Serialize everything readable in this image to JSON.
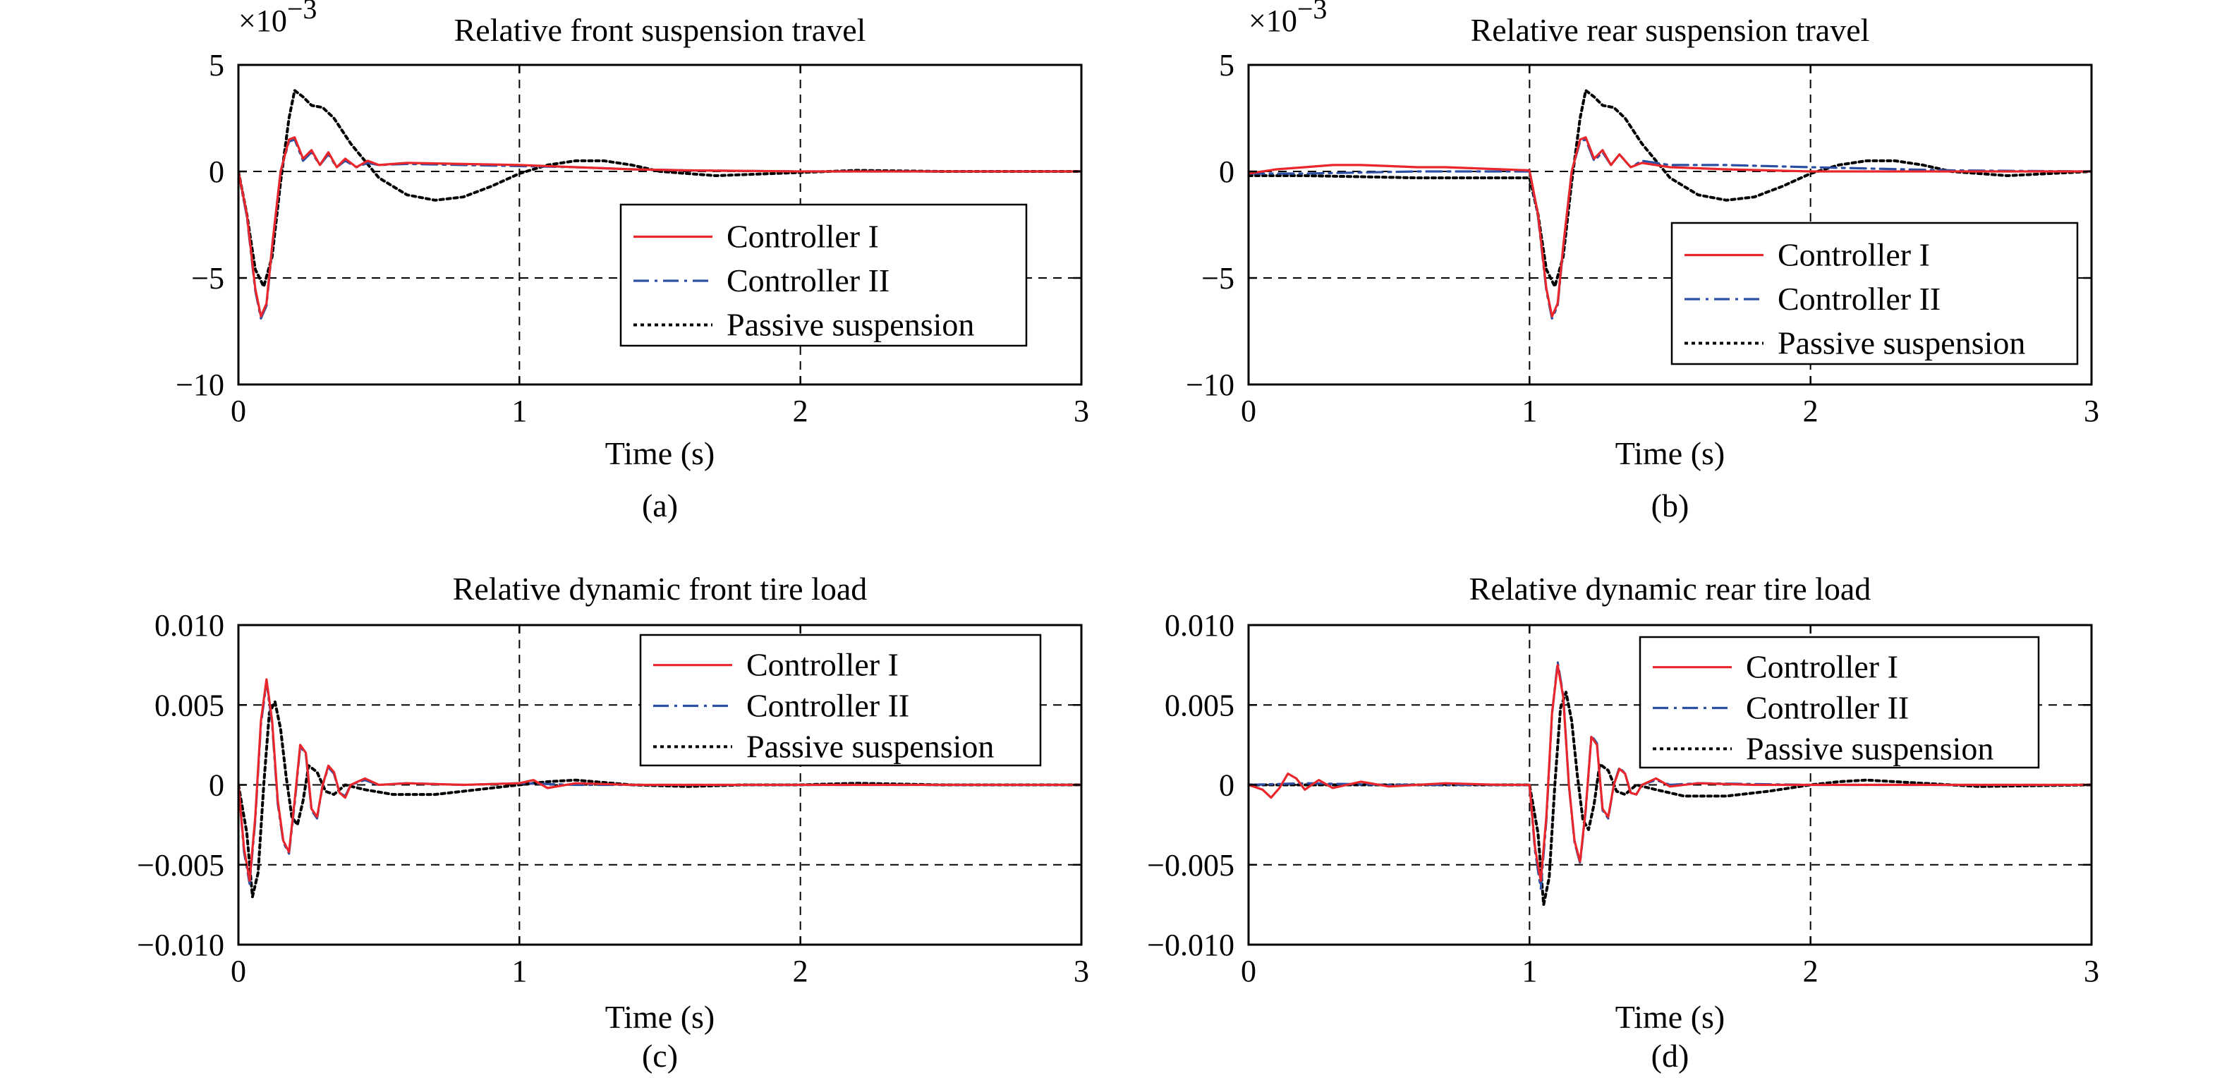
{
  "colors": {
    "controller_1": "#e8262b",
    "controller_2": "#2c4fa3",
    "passive": "#000000",
    "grid": "#000000"
  },
  "chart_data": [
    {
      "type": "line",
      "panel_label": "(a)",
      "title": "Relative front suspension travel",
      "xlabel": "Time (s)",
      "ylabel": "",
      "y_multiplier": "×10",
      "y_exponent": "−3",
      "xlim": [
        0,
        3
      ],
      "ylim": [
        -10,
        5
      ],
      "x_ticks": [
        0,
        1,
        2,
        3
      ],
      "x_tick_labels": [
        "0",
        "1",
        "2",
        "3"
      ],
      "y_ticks": [
        5,
        0,
        -5,
        -10
      ],
      "y_tick_labels": [
        "5",
        "0",
        "−5",
        "−10"
      ],
      "grid": "dashed",
      "legend_placement": "center-right",
      "series": [
        {
          "name": "Controller I",
          "style": "solid",
          "color": "#e8262b",
          "x": [
            0,
            0.03,
            0.06,
            0.08,
            0.1,
            0.12,
            0.15,
            0.18,
            0.2,
            0.23,
            0.26,
            0.29,
            0.32,
            0.35,
            0.38,
            0.42,
            0.46,
            0.5,
            0.6,
            0.8,
            1.0,
            1.2,
            1.4,
            1.6,
            2.0,
            2.5,
            3.0
          ],
          "y": [
            0,
            -2.0,
            -5.5,
            -6.8,
            -6.2,
            -3.5,
            0.0,
            1.5,
            1.6,
            0.6,
            1.0,
            0.3,
            0.9,
            0.2,
            0.6,
            0.2,
            0.5,
            0.3,
            0.4,
            0.35,
            0.3,
            0.2,
            0.1,
            0.05,
            0.0,
            0.0,
            0.0
          ]
        },
        {
          "name": "Controller II",
          "style": "dashdot",
          "color": "#2c4fa3",
          "x": [
            0,
            0.03,
            0.06,
            0.08,
            0.1,
            0.12,
            0.15,
            0.18,
            0.2,
            0.23,
            0.26,
            0.29,
            0.32,
            0.35,
            0.38,
            0.42,
            0.46,
            0.5,
            0.6,
            0.8,
            1.0,
            1.2,
            1.4,
            1.6,
            2.0,
            2.5,
            3.0
          ],
          "y": [
            0,
            -2.1,
            -5.6,
            -6.9,
            -6.3,
            -3.6,
            0.0,
            1.4,
            1.5,
            0.5,
            0.9,
            0.3,
            0.8,
            0.2,
            0.5,
            0.2,
            0.4,
            0.3,
            0.35,
            0.3,
            0.25,
            0.2,
            0.1,
            0.05,
            0.0,
            0.0,
            0.0
          ]
        },
        {
          "name": "Passive suspension",
          "style": "dotted",
          "color": "#000000",
          "x": [
            0,
            0.03,
            0.06,
            0.09,
            0.12,
            0.15,
            0.18,
            0.2,
            0.23,
            0.26,
            0.3,
            0.34,
            0.4,
            0.5,
            0.6,
            0.7,
            0.8,
            0.9,
            1.0,
            1.1,
            1.2,
            1.3,
            1.4,
            1.5,
            1.7,
            2.0,
            2.2,
            2.5,
            3.0
          ],
          "y": [
            0,
            -2.0,
            -4.6,
            -5.4,
            -4.0,
            -0.5,
            2.5,
            3.8,
            3.5,
            3.1,
            3.0,
            2.5,
            1.3,
            -0.3,
            -1.1,
            -1.35,
            -1.2,
            -0.7,
            -0.1,
            0.3,
            0.5,
            0.5,
            0.3,
            0.0,
            -0.2,
            -0.05,
            0.05,
            0.0,
            0.0
          ]
        }
      ]
    },
    {
      "type": "line",
      "panel_label": "(b)",
      "title": "Relative rear suspension travel",
      "xlabel": "Time (s)",
      "ylabel": "",
      "y_multiplier": "×10",
      "y_exponent": "−3",
      "xlim": [
        0,
        3
      ],
      "ylim": [
        -10,
        5
      ],
      "x_ticks": [
        0,
        1,
        2,
        3
      ],
      "x_tick_labels": [
        "0",
        "1",
        "2",
        "3"
      ],
      "y_ticks": [
        5,
        0,
        -5,
        -10
      ],
      "y_tick_labels": [
        "5",
        "0",
        "−5",
        "−10"
      ],
      "grid": "dashed",
      "legend_placement": "bottom-right",
      "series": [
        {
          "name": "Controller I",
          "style": "solid",
          "color": "#e8262b",
          "x": [
            0,
            0.1,
            0.2,
            0.3,
            0.4,
            0.5,
            0.6,
            0.7,
            0.8,
            0.9,
            1.0,
            1.03,
            1.06,
            1.08,
            1.1,
            1.12,
            1.15,
            1.18,
            1.2,
            1.23,
            1.26,
            1.29,
            1.32,
            1.36,
            1.4,
            1.5,
            1.7,
            2.0,
            2.5,
            3.0
          ],
          "y": [
            -0.1,
            0.1,
            0.2,
            0.3,
            0.3,
            0.25,
            0.2,
            0.2,
            0.15,
            0.1,
            0.05,
            -2.0,
            -5.5,
            -6.8,
            -6.2,
            -3.5,
            0.0,
            1.5,
            1.6,
            0.6,
            1.0,
            0.3,
            0.8,
            0.2,
            0.4,
            0.2,
            0.1,
            0.0,
            0.0,
            0.0
          ]
        },
        {
          "name": "Controller II",
          "style": "dashdot",
          "color": "#2c4fa3",
          "x": [
            0,
            0.2,
            0.4,
            0.6,
            0.8,
            1.0,
            1.03,
            1.06,
            1.08,
            1.1,
            1.12,
            1.15,
            1.18,
            1.2,
            1.23,
            1.26,
            1.29,
            1.32,
            1.36,
            1.4,
            1.5,
            1.7,
            2.0,
            2.5,
            3.0
          ],
          "y": [
            -0.1,
            -0.1,
            -0.05,
            0.0,
            0.0,
            0.0,
            -2.1,
            -5.6,
            -6.9,
            -6.3,
            -3.6,
            0.0,
            1.4,
            1.5,
            0.5,
            0.9,
            0.3,
            0.8,
            0.2,
            0.5,
            0.3,
            0.3,
            0.2,
            0.05,
            0.0
          ]
        },
        {
          "name": "Passive suspension",
          "style": "dotted",
          "color": "#000000",
          "x": [
            0,
            0.2,
            0.4,
            0.6,
            0.8,
            1.0,
            1.03,
            1.06,
            1.09,
            1.12,
            1.15,
            1.18,
            1.2,
            1.23,
            1.26,
            1.3,
            1.34,
            1.4,
            1.5,
            1.6,
            1.7,
            1.8,
            1.9,
            2.0,
            2.1,
            2.2,
            2.3,
            2.4,
            2.5,
            2.7,
            3.0
          ],
          "y": [
            -0.2,
            -0.2,
            -0.25,
            -0.3,
            -0.3,
            -0.3,
            -2.0,
            -4.6,
            -5.4,
            -4.0,
            -0.5,
            2.5,
            3.8,
            3.5,
            3.1,
            3.0,
            2.5,
            1.3,
            -0.3,
            -1.1,
            -1.35,
            -1.2,
            -0.7,
            -0.1,
            0.3,
            0.5,
            0.5,
            0.3,
            0.0,
            -0.2,
            0.0
          ]
        }
      ]
    },
    {
      "type": "line",
      "panel_label": "(c)",
      "title": "Relative dynamic front tire load",
      "xlabel": "Time (s)",
      "ylabel": "",
      "xlim": [
        0,
        3
      ],
      "ylim": [
        -0.01,
        0.01
      ],
      "x_ticks": [
        0,
        1,
        2,
        3
      ],
      "x_tick_labels": [
        "0",
        "1",
        "2",
        "3"
      ],
      "y_ticks": [
        0.01,
        0.005,
        0,
        -0.005,
        -0.01
      ],
      "y_tick_labels": [
        "0.010",
        "0.005",
        "0",
        "−0.005",
        "−0.010"
      ],
      "grid": "dashed",
      "legend_placement": "top-right",
      "series": [
        {
          "name": "Controller I",
          "style": "solid",
          "color": "#e8262b",
          "x": [
            0,
            0.02,
            0.04,
            0.06,
            0.08,
            0.1,
            0.12,
            0.14,
            0.16,
            0.18,
            0.2,
            0.22,
            0.24,
            0.26,
            0.28,
            0.3,
            0.32,
            0.34,
            0.36,
            0.38,
            0.4,
            0.45,
            0.5,
            0.6,
            0.8,
            1.0,
            1.05,
            1.1,
            1.2,
            1.4,
            1.6,
            2.0,
            2.5,
            3.0
          ],
          "y": [
            0,
            -0.004,
            -0.006,
            -0.002,
            0.004,
            0.0066,
            0.004,
            -0.001,
            -0.0035,
            -0.0042,
            -0.001,
            0.0025,
            0.002,
            -0.0015,
            -0.002,
            0.0,
            0.0012,
            0.0008,
            -0.0005,
            -0.0008,
            0.0,
            0.0004,
            0.0,
            0.0001,
            0.0,
            0.0001,
            0.0003,
            -0.0002,
            0.0001,
            0.0,
            0.0,
            0.0,
            0.0,
            0.0
          ]
        },
        {
          "name": "Controller II",
          "style": "dashdot",
          "color": "#2c4fa3",
          "x": [
            0,
            0.02,
            0.04,
            0.06,
            0.08,
            0.1,
            0.12,
            0.14,
            0.16,
            0.18,
            0.2,
            0.22,
            0.24,
            0.26,
            0.28,
            0.3,
            0.32,
            0.34,
            0.36,
            0.38,
            0.4,
            0.45,
            0.5,
            0.6,
            0.8,
            1.0,
            1.2,
            1.5,
            2.0,
            3.0
          ],
          "y": [
            0,
            -0.0042,
            -0.0062,
            -0.0022,
            0.0038,
            0.0064,
            0.0038,
            -0.0012,
            -0.0036,
            -0.0043,
            -0.0012,
            0.0024,
            0.0019,
            -0.0016,
            -0.0021,
            0.0,
            0.0011,
            0.0007,
            -0.0005,
            -0.0007,
            0.0,
            0.0003,
            0.0,
            0.0001,
            0.0,
            0.0001,
            0.0,
            0.0,
            0.0,
            0.0
          ]
        },
        {
          "name": "Passive suspension",
          "style": "dotted",
          "color": "#000000",
          "x": [
            0,
            0.03,
            0.05,
            0.07,
            0.09,
            0.11,
            0.13,
            0.15,
            0.17,
            0.19,
            0.21,
            0.23,
            0.25,
            0.28,
            0.31,
            0.34,
            0.38,
            0.45,
            0.55,
            0.7,
            0.85,
            1.0,
            1.1,
            1.2,
            1.4,
            1.6,
            1.8,
            2.0,
            2.2,
            2.5,
            3.0
          ],
          "y": [
            0,
            -0.003,
            -0.007,
            -0.0055,
            0.0,
            0.0045,
            0.0052,
            0.0035,
            0.0005,
            -0.002,
            -0.0025,
            -0.001,
            0.0012,
            0.0008,
            -0.0004,
            -0.0006,
            0.0,
            -0.0003,
            -0.0006,
            -0.0006,
            -0.0003,
            0.0,
            0.0002,
            0.0003,
            0.0,
            -0.0001,
            0.0,
            0.0,
            0.0001,
            0.0,
            0.0
          ]
        }
      ]
    },
    {
      "type": "line",
      "panel_label": "(d)",
      "title": "Relative dynamic rear tire load",
      "xlabel": "Time (s)",
      "ylabel": "",
      "xlim": [
        0,
        3
      ],
      "ylim": [
        -0.01,
        0.01
      ],
      "x_ticks": [
        0,
        1,
        2,
        3
      ],
      "x_tick_labels": [
        "0",
        "1",
        "2",
        "3"
      ],
      "y_ticks": [
        0.01,
        0.005,
        0,
        -0.005,
        -0.01
      ],
      "y_tick_labels": [
        "0.010",
        "0.005",
        "0",
        "−0.005",
        "−0.010"
      ],
      "grid": "dashed",
      "legend_placement": "top-right",
      "series": [
        {
          "name": "Controller I",
          "style": "solid",
          "color": "#e8262b",
          "x": [
            0,
            0.05,
            0.08,
            0.11,
            0.14,
            0.17,
            0.2,
            0.25,
            0.3,
            0.4,
            0.5,
            0.7,
            0.9,
            1.0,
            1.02,
            1.04,
            1.06,
            1.08,
            1.1,
            1.12,
            1.14,
            1.16,
            1.18,
            1.2,
            1.22,
            1.24,
            1.26,
            1.28,
            1.3,
            1.32,
            1.34,
            1.36,
            1.38,
            1.4,
            1.45,
            1.5,
            1.6,
            1.8,
            2.0,
            2.5,
            3.0
          ],
          "y": [
            0,
            -0.0003,
            -0.0008,
            -0.0002,
            0.0007,
            0.0004,
            -0.0003,
            0.0003,
            -0.0002,
            0.0002,
            -0.0001,
            0.0001,
            0.0,
            0.0,
            -0.004,
            -0.006,
            -0.002,
            0.0045,
            0.0075,
            0.0055,
            0.0,
            -0.0035,
            -0.0048,
            -0.0015,
            0.003,
            0.0025,
            -0.0015,
            -0.002,
            0.0,
            0.001,
            0.0007,
            -0.0005,
            -0.0006,
            0.0,
            0.0004,
            -0.0001,
            0.0001,
            0.0,
            0.0,
            0.0,
            0.0
          ]
        },
        {
          "name": "Controller II",
          "style": "dashdot",
          "color": "#2c4fa3",
          "x": [
            0,
            0.2,
            0.5,
            0.9,
            1.0,
            1.02,
            1.04,
            1.06,
            1.08,
            1.1,
            1.12,
            1.14,
            1.16,
            1.18,
            1.2,
            1.22,
            1.24,
            1.26,
            1.28,
            1.3,
            1.32,
            1.34,
            1.36,
            1.38,
            1.4,
            1.45,
            1.5,
            1.6,
            2.0,
            3.0
          ],
          "y": [
            0,
            0.0001,
            0.0,
            0.0,
            0.0,
            -0.0042,
            -0.0065,
            -0.0022,
            0.0044,
            0.0077,
            0.0056,
            0.0,
            -0.0036,
            -0.0049,
            -0.0016,
            0.0031,
            0.0026,
            -0.0016,
            -0.0021,
            0.0,
            0.0011,
            0.0007,
            -0.0005,
            -0.0006,
            0.0,
            0.0003,
            0.0,
            0.0001,
            0.0,
            0.0
          ]
        },
        {
          "name": "Passive suspension",
          "style": "dotted",
          "color": "#000000",
          "x": [
            0,
            0.2,
            0.5,
            0.9,
            1.0,
            1.03,
            1.05,
            1.07,
            1.09,
            1.11,
            1.13,
            1.15,
            1.17,
            1.19,
            1.21,
            1.23,
            1.25,
            1.28,
            1.31,
            1.34,
            1.38,
            1.45,
            1.55,
            1.7,
            1.85,
            2.0,
            2.1,
            2.2,
            2.4,
            2.6,
            3.0
          ],
          "y": [
            0,
            0.0,
            0.0,
            0.0,
            0.0,
            -0.003,
            -0.0075,
            -0.0058,
            0.0,
            0.0048,
            0.0058,
            0.004,
            0.0006,
            -0.0022,
            -0.0028,
            -0.0012,
            0.0013,
            0.0009,
            -0.0004,
            -0.0006,
            0.0,
            -0.0003,
            -0.0007,
            -0.0007,
            -0.0004,
            0.0,
            0.0002,
            0.0003,
            0.0001,
            -0.0001,
            0.0
          ]
        }
      ]
    }
  ]
}
